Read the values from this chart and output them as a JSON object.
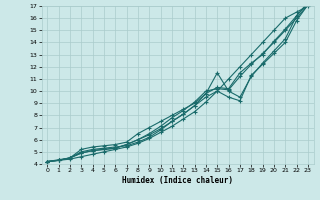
{
  "xlabel": "Humidex (Indice chaleur)",
  "bg_color": "#cce8e8",
  "grid_color": "#aacccc",
  "line_color": "#1a6b6b",
  "xlim": [
    -0.5,
    23.5
  ],
  "ylim": [
    4,
    17
  ],
  "xticks": [
    0,
    1,
    2,
    3,
    4,
    5,
    6,
    7,
    8,
    9,
    10,
    11,
    12,
    13,
    14,
    15,
    16,
    17,
    18,
    19,
    20,
    21,
    22,
    23
  ],
  "yticks": [
    4,
    5,
    6,
    7,
    8,
    9,
    10,
    11,
    12,
    13,
    14,
    15,
    16,
    17
  ],
  "series": [
    {
      "x": [
        0,
        1,
        2,
        3,
        4,
        5,
        6,
        7,
        8,
        9,
        10,
        11,
        12,
        13,
        14,
        15,
        16,
        17,
        18,
        19,
        20,
        21,
        22,
        23
      ],
      "y": [
        4.2,
        4.3,
        4.4,
        4.6,
        4.8,
        5.0,
        5.2,
        5.4,
        5.7,
        6.1,
        6.6,
        7.1,
        7.7,
        8.3,
        9.1,
        10.0,
        11.0,
        12.0,
        13.0,
        14.0,
        15.0,
        16.0,
        16.5,
        17.0
      ]
    },
    {
      "x": [
        0,
        1,
        2,
        3,
        4,
        5,
        6,
        7,
        8,
        9,
        10,
        11,
        12,
        13,
        14,
        15,
        16,
        17,
        18,
        19,
        20,
        21,
        22,
        23
      ],
      "y": [
        4.2,
        4.3,
        4.5,
        5.0,
        5.2,
        5.3,
        5.4,
        5.5,
        5.8,
        6.2,
        6.8,
        7.5,
        8.1,
        8.8,
        9.8,
        11.5,
        10.0,
        9.5,
        11.2,
        12.3,
        13.3,
        14.3,
        16.2,
        17.2
      ]
    },
    {
      "x": [
        0,
        1,
        2,
        3,
        4,
        5,
        6,
        7,
        8,
        9,
        10,
        11,
        12,
        13,
        14,
        15,
        16,
        17,
        18,
        19,
        20,
        21,
        22,
        23
      ],
      "y": [
        4.2,
        4.3,
        4.5,
        4.9,
        5.1,
        5.2,
        5.3,
        5.6,
        6.0,
        6.4,
        6.9,
        7.5,
        8.1,
        8.8,
        9.5,
        10.0,
        9.5,
        9.2,
        11.3,
        12.2,
        13.1,
        14.0,
        15.8,
        17.1
      ]
    },
    {
      "x": [
        0,
        1,
        2,
        3,
        4,
        5,
        6,
        7,
        8,
        9,
        10,
        11,
        12,
        13,
        14,
        15,
        16,
        17,
        18,
        19,
        20,
        21,
        22,
        23
      ],
      "y": [
        4.2,
        4.3,
        4.5,
        4.9,
        5.1,
        5.2,
        5.3,
        5.6,
        6.0,
        6.5,
        7.1,
        7.8,
        8.4,
        9.1,
        10.0,
        10.2,
        10.1,
        11.2,
        12.2,
        13.1,
        14.0,
        15.0,
        16.0,
        17.1
      ]
    },
    {
      "x": [
        0,
        2,
        3,
        4,
        5,
        6,
        7,
        8,
        9,
        10,
        11,
        12,
        13,
        14,
        15,
        16,
        17,
        18,
        19,
        20,
        21,
        22,
        23
      ],
      "y": [
        4.2,
        4.5,
        5.2,
        5.4,
        5.5,
        5.6,
        5.8,
        6.5,
        7.0,
        7.5,
        8.0,
        8.5,
        9.0,
        9.8,
        10.3,
        10.2,
        11.5,
        12.3,
        13.0,
        14.1,
        15.1,
        16.2,
        17.3
      ]
    }
  ]
}
